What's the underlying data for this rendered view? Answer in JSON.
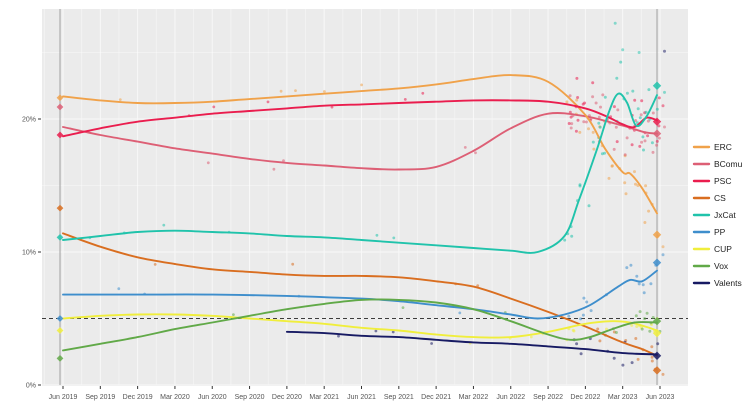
{
  "chart_data": {
    "type": "line",
    "title": "",
    "description": "Polling trend chart with smoothed party lines, poll scatter points, election-result diamonds, 5% dashed threshold and vertical election-date lines",
    "x_ticks": [
      {
        "label": "Jun 2019",
        "year": 2019.42
      },
      {
        "label": "Sep 2019",
        "year": 2019.67
      },
      {
        "label": "Dec 2019",
        "year": 2019.92
      },
      {
        "label": "Mar 2020",
        "year": 2020.17
      },
      {
        "label": "Jun 2020",
        "year": 2020.42
      },
      {
        "label": "Sep 2020",
        "year": 2020.67
      },
      {
        "label": "Dec 2020",
        "year": 2020.92
      },
      {
        "label": "Mar 2021",
        "year": 2021.17
      },
      {
        "label": "Jun 2021",
        "year": 2021.42
      },
      {
        "label": "Sep 2021",
        "year": 2021.67
      },
      {
        "label": "Dec 2021",
        "year": 2021.92
      },
      {
        "label": "Mar 2022",
        "year": 2022.17
      },
      {
        "label": "Jun 2022",
        "year": 2022.42
      },
      {
        "label": "Sep 2022",
        "year": 2022.67
      },
      {
        "label": "Dec 2022",
        "year": 2022.92
      },
      {
        "label": "Mar 2023",
        "year": 2023.17
      },
      {
        "label": "Jun 2023",
        "year": 2023.42
      }
    ],
    "y_ticks": [
      {
        "label": "0%",
        "value": 0
      },
      {
        "label": "10%",
        "value": 10
      },
      {
        "label": "20%",
        "value": 20
      }
    ],
    "ylim": [
      0,
      28.3
    ],
    "xlim": [
      2019.28,
      2023.62
    ],
    "grid": true,
    "legend_position": "right",
    "threshold_line": {
      "value": 5,
      "style": "dashed",
      "color": "#3c3c3c"
    },
    "election_line_years": [
      2019.4,
      2023.4
    ],
    "panel_bg": "#ebebeb",
    "gridline_color": "#f8f8f8",
    "election_line_color": "#a6a6a6",
    "axis_text_color": "#555555",
    "legend_text_color": "#222222",
    "series": [
      {
        "name": "ERC",
        "color": "#f0a24a",
        "points": [
          [
            2019.42,
            21.7
          ],
          [
            2019.67,
            21.4
          ],
          [
            2019.92,
            21.2
          ],
          [
            2020.17,
            21.2
          ],
          [
            2020.42,
            21.3
          ],
          [
            2020.67,
            21.5
          ],
          [
            2020.92,
            21.7
          ],
          [
            2021.17,
            21.9
          ],
          [
            2021.42,
            22.1
          ],
          [
            2021.67,
            22.3
          ],
          [
            2021.92,
            22.6
          ],
          [
            2022.17,
            23.0
          ],
          [
            2022.42,
            23.3
          ],
          [
            2022.67,
            22.8
          ],
          [
            2022.92,
            20.3
          ],
          [
            2023.05,
            17.8
          ],
          [
            2023.17,
            16.0
          ],
          [
            2023.22,
            15.9
          ],
          [
            2023.3,
            14.8
          ],
          [
            2023.4,
            12.9
          ]
        ],
        "scatter": {
          "sparse": 5,
          "dense": 26,
          "sparse_jitter": 1.0,
          "dense_jitter": 2.2
        }
      },
      {
        "name": "BComu",
        "color": "#dd5f75",
        "points": [
          [
            2019.42,
            19.4
          ],
          [
            2019.67,
            18.8
          ],
          [
            2019.92,
            18.3
          ],
          [
            2020.17,
            17.8
          ],
          [
            2020.42,
            17.4
          ],
          [
            2020.67,
            17.0
          ],
          [
            2020.92,
            16.7
          ],
          [
            2021.17,
            16.5
          ],
          [
            2021.42,
            16.3
          ],
          [
            2021.67,
            16.2
          ],
          [
            2021.92,
            16.4
          ],
          [
            2022.17,
            17.6
          ],
          [
            2022.42,
            19.3
          ],
          [
            2022.67,
            20.4
          ],
          [
            2022.92,
            20.2
          ],
          [
            2023.17,
            19.5
          ],
          [
            2023.32,
            19.0
          ],
          [
            2023.4,
            18.9
          ]
        ],
        "scatter": {
          "sparse": 5,
          "dense": 30,
          "sparse_jitter": 1.0,
          "dense_jitter": 1.8
        }
      },
      {
        "name": "PSC",
        "color": "#ea1d4e",
        "points": [
          [
            2019.42,
            18.7
          ],
          [
            2019.67,
            19.3
          ],
          [
            2019.92,
            19.8
          ],
          [
            2020.17,
            20.1
          ],
          [
            2020.42,
            20.4
          ],
          [
            2020.67,
            20.6
          ],
          [
            2020.92,
            20.8
          ],
          [
            2021.17,
            21.0
          ],
          [
            2021.42,
            21.1
          ],
          [
            2021.67,
            21.2
          ],
          [
            2021.92,
            21.3
          ],
          [
            2022.17,
            21.4
          ],
          [
            2022.42,
            21.4
          ],
          [
            2022.67,
            21.3
          ],
          [
            2022.92,
            20.8
          ],
          [
            2023.08,
            20.1
          ],
          [
            2023.17,
            19.6
          ],
          [
            2023.25,
            19.4
          ],
          [
            2023.33,
            20.1
          ],
          [
            2023.4,
            19.9
          ]
        ],
        "scatter": {
          "sparse": 6,
          "dense": 30,
          "sparse_jitter": 1.0,
          "dense_jitter": 1.8
        }
      },
      {
        "name": "CS",
        "color": "#d96e20",
        "points": [
          [
            2019.42,
            11.4
          ],
          [
            2019.67,
            10.4
          ],
          [
            2019.92,
            9.6
          ],
          [
            2020.17,
            9.1
          ],
          [
            2020.42,
            8.7
          ],
          [
            2020.67,
            8.5
          ],
          [
            2020.92,
            8.3
          ],
          [
            2021.17,
            8.2
          ],
          [
            2021.42,
            8.2
          ],
          [
            2021.67,
            8.1
          ],
          [
            2021.92,
            7.8
          ],
          [
            2022.17,
            7.4
          ],
          [
            2022.42,
            6.5
          ],
          [
            2022.67,
            5.5
          ],
          [
            2022.92,
            4.4
          ],
          [
            2023.17,
            3.2
          ],
          [
            2023.3,
            2.7
          ],
          [
            2023.4,
            2.2
          ]
        ],
        "scatter": {
          "sparse": 4,
          "dense": 11,
          "sparse_jitter": 0.8,
          "dense_jitter": 1.0
        }
      },
      {
        "name": "JxCat",
        "color": "#20c3ab",
        "points": [
          [
            2019.42,
            10.9
          ],
          [
            2019.67,
            11.2
          ],
          [
            2019.92,
            11.5
          ],
          [
            2020.17,
            11.6
          ],
          [
            2020.42,
            11.5
          ],
          [
            2020.67,
            11.4
          ],
          [
            2020.92,
            11.2
          ],
          [
            2021.17,
            11.1
          ],
          [
            2021.42,
            10.9
          ],
          [
            2021.67,
            10.7
          ],
          [
            2021.92,
            10.5
          ],
          [
            2022.17,
            10.3
          ],
          [
            2022.42,
            10.1
          ],
          [
            2022.6,
            10.0
          ],
          [
            2022.78,
            11.2
          ],
          [
            2022.88,
            14.0
          ],
          [
            2023.0,
            17.8
          ],
          [
            2023.08,
            20.6
          ],
          [
            2023.14,
            21.9
          ],
          [
            2023.2,
            21.2
          ],
          [
            2023.26,
            19.5
          ],
          [
            2023.33,
            20.2
          ],
          [
            2023.4,
            21.8
          ]
        ],
        "scatter": {
          "sparse": 6,
          "dense": 32,
          "sparse_jitter": 0.9,
          "dense_jitter": 2.6
        }
      },
      {
        "name": "PP",
        "color": "#3e8ecc",
        "points": [
          [
            2019.42,
            6.8
          ],
          [
            2019.92,
            6.8
          ],
          [
            2020.42,
            6.8
          ],
          [
            2020.92,
            6.7
          ],
          [
            2021.17,
            6.6
          ],
          [
            2021.42,
            6.5
          ],
          [
            2021.67,
            6.3
          ],
          [
            2021.92,
            6.0
          ],
          [
            2022.17,
            5.7
          ],
          [
            2022.42,
            5.3
          ],
          [
            2022.6,
            5.0
          ],
          [
            2022.78,
            5.3
          ],
          [
            2022.95,
            6.0
          ],
          [
            2023.14,
            7.4
          ],
          [
            2023.22,
            7.9
          ],
          [
            2023.3,
            7.8
          ],
          [
            2023.4,
            8.6
          ]
        ],
        "scatter": {
          "sparse": 4,
          "dense": 15,
          "sparse_jitter": 0.7,
          "dense_jitter": 1.0
        }
      },
      {
        "name": "CUP",
        "color": "#f0ee3c",
        "points": [
          [
            2019.42,
            5.0
          ],
          [
            2019.67,
            5.2
          ],
          [
            2019.92,
            5.3
          ],
          [
            2020.17,
            5.3
          ],
          [
            2020.42,
            5.2
          ],
          [
            2020.67,
            5.0
          ],
          [
            2020.92,
            4.8
          ],
          [
            2021.17,
            4.6
          ],
          [
            2021.42,
            4.3
          ],
          [
            2021.67,
            4.1
          ],
          [
            2021.92,
            3.8
          ],
          [
            2022.17,
            3.6
          ],
          [
            2022.42,
            3.6
          ],
          [
            2022.67,
            4.0
          ],
          [
            2022.92,
            4.6
          ],
          [
            2023.1,
            4.8
          ],
          [
            2023.22,
            4.7
          ],
          [
            2023.32,
            4.4
          ],
          [
            2023.4,
            4.1
          ]
        ],
        "scatter": {
          "sparse": 4,
          "dense": 12,
          "sparse_jitter": 0.7,
          "dense_jitter": 0.8
        }
      },
      {
        "name": "Vox",
        "color": "#61a948",
        "points": [
          [
            2019.42,
            2.6
          ],
          [
            2019.67,
            3.1
          ],
          [
            2019.92,
            3.6
          ],
          [
            2020.17,
            4.2
          ],
          [
            2020.42,
            4.7
          ],
          [
            2020.67,
            5.2
          ],
          [
            2020.92,
            5.7
          ],
          [
            2021.17,
            6.1
          ],
          [
            2021.42,
            6.4
          ],
          [
            2021.67,
            6.4
          ],
          [
            2021.92,
            6.2
          ],
          [
            2022.17,
            5.7
          ],
          [
            2022.42,
            4.8
          ],
          [
            2022.67,
            3.8
          ],
          [
            2022.82,
            3.4
          ],
          [
            2022.95,
            3.6
          ],
          [
            2023.1,
            4.2
          ],
          [
            2023.25,
            4.7
          ],
          [
            2023.4,
            4.7
          ]
        ],
        "scatter": {
          "sparse": 4,
          "dense": 12,
          "sparse_jitter": 0.7,
          "dense_jitter": 0.9
        }
      },
      {
        "name": "Valents",
        "color": "#171a63",
        "points": [
          [
            2020.92,
            4.0
          ],
          [
            2021.17,
            3.9
          ],
          [
            2021.42,
            3.7
          ],
          [
            2021.67,
            3.6
          ],
          [
            2021.92,
            3.4
          ],
          [
            2022.17,
            3.2
          ],
          [
            2022.42,
            3.1
          ],
          [
            2022.67,
            2.9
          ],
          [
            2022.92,
            2.7
          ],
          [
            2023.17,
            2.4
          ],
          [
            2023.4,
            2.3
          ]
        ],
        "scatter": {
          "sparse": 4,
          "dense": 10,
          "sparse_jitter": 0.6,
          "dense_jitter": 0.8
        }
      }
    ],
    "elections": [
      {
        "year": 2019.4,
        "results": {
          "ERC": 21.6,
          "BComu": 20.9,
          "PSC": 18.8,
          "CS": 13.3,
          "JxCat": 11.1,
          "PP": 5.0,
          "CUP": 4.1,
          "Vox": 2.0
        }
      },
      {
        "year": 2023.4,
        "results": {
          "JxCat": 22.5,
          "PSC": 19.8,
          "BComu": 18.9,
          "ERC": 11.3,
          "PP": 9.2,
          "Vox": 4.8,
          "CUP": 3.9,
          "Valents": 2.2,
          "CS": 1.1
        }
      }
    ],
    "outlier_points": [
      {
        "party": "JxCat",
        "year": 2023.12,
        "value": 27.2
      },
      {
        "party": "JxCat",
        "year": 2023.17,
        "value": 25.2
      },
      {
        "party": "JxCat",
        "year": 2023.28,
        "value": 25.0
      },
      {
        "party": "JxCat",
        "year": 2023.45,
        "value": 22.0
      },
      {
        "party": "BComu",
        "year": 2023.45,
        "value": 19.4
      },
      {
        "party": "PSC",
        "year": 2023.44,
        "value": 21.0
      },
      {
        "party": "ERC",
        "year": 2023.44,
        "value": 10.4
      },
      {
        "party": "PP",
        "year": 2023.44,
        "value": 9.8
      },
      {
        "party": "Valents",
        "year": 2023.45,
        "value": 25.1
      },
      {
        "party": "CS",
        "year": 2023.44,
        "value": 0.8
      }
    ],
    "legend": {
      "items": [
        "ERC",
        "BComu",
        "PSC",
        "CS",
        "JxCat",
        "PP",
        "CUP",
        "Vox",
        "Valents"
      ]
    },
    "scatter_config": {
      "seed": 11,
      "sparse_range": [
        2019.55,
        2022.72
      ],
      "dense_range": [
        2022.78,
        2023.42
      ]
    }
  }
}
